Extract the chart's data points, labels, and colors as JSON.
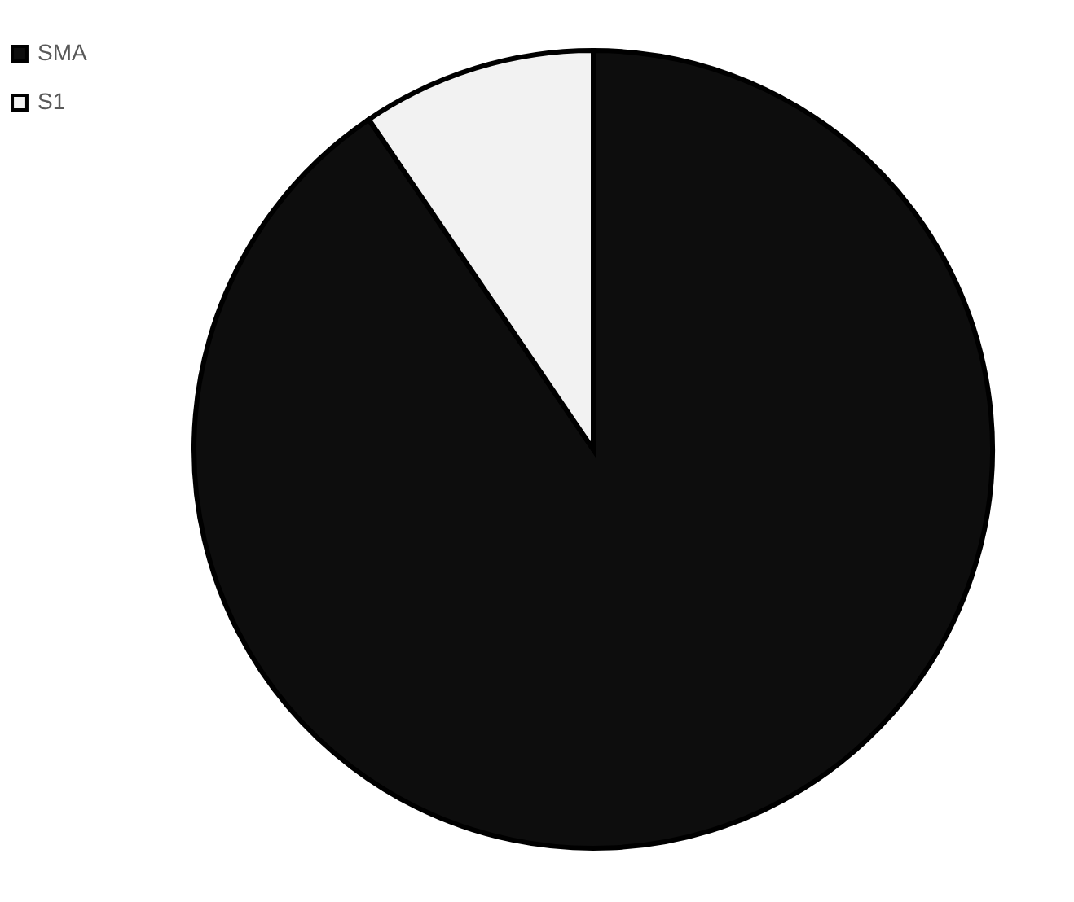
{
  "chart_data": {
    "type": "pie",
    "categories": [
      "SMA",
      "S1"
    ],
    "values": [
      90.5,
      9.5
    ],
    "colors": [
      "#0d0d0d",
      "#f2f2f2"
    ],
    "legend": "left"
  }
}
